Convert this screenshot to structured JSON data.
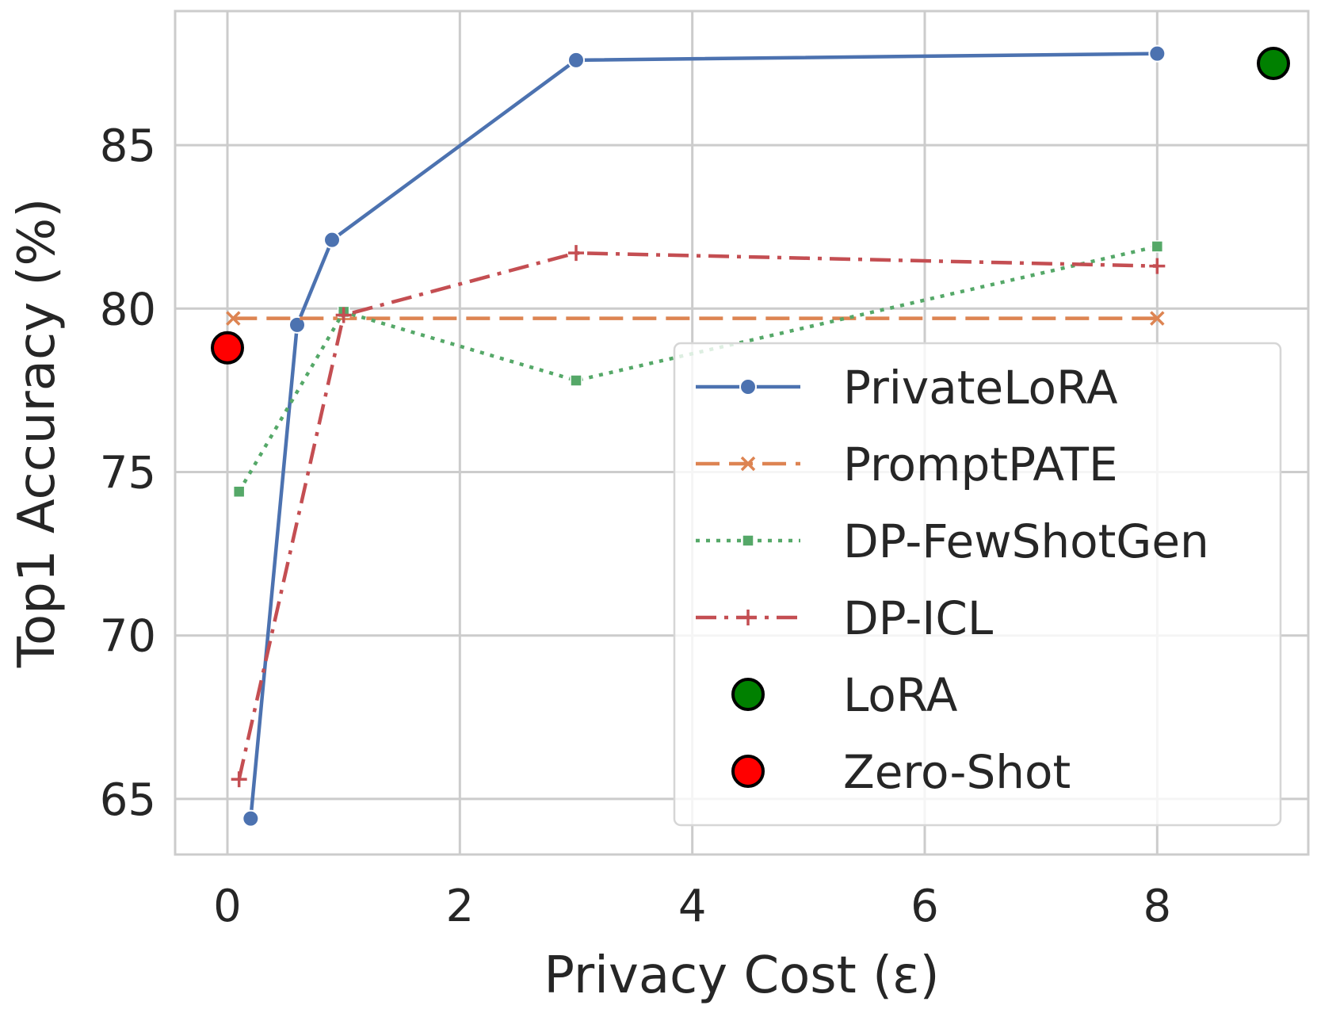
{
  "chart_data": {
    "type": "line",
    "title": "",
    "xlabel": "Privacy Cost (ε)",
    "ylabel": "Top1 Accuracy (%)",
    "xlim": [
      -0.45,
      9.3
    ],
    "ylim": [
      63.3,
      89.1
    ],
    "xticks": [
      0,
      2,
      4,
      6,
      8
    ],
    "yticks": [
      65,
      70,
      75,
      80,
      85
    ],
    "grid": true,
    "legend_position": "lower-right",
    "series": [
      {
        "name": "PrivateLoRA",
        "color": "#4c72b0",
        "style": "solid",
        "marker": "circle",
        "x": [
          0.2,
          0.6,
          0.9,
          3,
          8
        ],
        "y": [
          64.4,
          79.5,
          82.1,
          87.6,
          87.8
        ]
      },
      {
        "name": "PromptPATE",
        "color": "#dd8452",
        "style": "dashed",
        "marker": "x",
        "x": [
          0.05,
          8
        ],
        "y": [
          79.7,
          79.7
        ]
      },
      {
        "name": "DP-FewShotGen",
        "color": "#55a868",
        "style": "dotted",
        "marker": "square",
        "x": [
          0.1,
          1,
          3,
          8
        ],
        "y": [
          74.4,
          79.9,
          77.8,
          81.9
        ]
      },
      {
        "name": "DP-ICL",
        "color": "#c44e52",
        "style": "dashdot",
        "marker": "plus",
        "x": [
          0.1,
          1,
          3,
          8
        ],
        "y": [
          65.6,
          79.8,
          81.7,
          81.3
        ]
      },
      {
        "name": "LoRA",
        "color": "#008000",
        "style": "none",
        "marker": "big-circle",
        "x": [
          9
        ],
        "y": [
          87.5
        ]
      },
      {
        "name": "Zero-Shot",
        "color": "#ff0000",
        "style": "none",
        "marker": "big-circle",
        "x": [
          0
        ],
        "y": [
          78.8
        ]
      }
    ]
  }
}
